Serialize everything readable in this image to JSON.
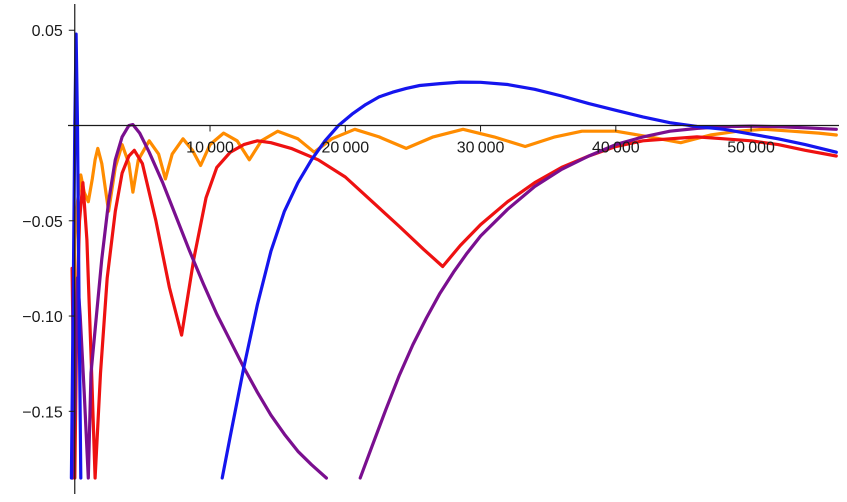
{
  "chart_data": {
    "type": "line",
    "title": "",
    "xlabel": "",
    "ylabel": "",
    "xlim": [
      -500,
      56500
    ],
    "ylim": [
      -0.185,
      0.058
    ],
    "x_ticks": [
      {
        "value": 10000,
        "label": "10 000"
      },
      {
        "value": 20000,
        "label": "20 000"
      },
      {
        "value": 30000,
        "label": "30 000"
      },
      {
        "value": 40000,
        "label": "40 000"
      },
      {
        "value": 50000,
        "label": "50 000"
      }
    ],
    "y_ticks": [
      {
        "value": 0.05,
        "label": "0.05"
      },
      {
        "value": -0.05,
        "label": "−0.05"
      },
      {
        "value": -0.1,
        "label": "−0.10"
      },
      {
        "value": -0.15,
        "label": "−0.15"
      }
    ],
    "grid": false,
    "legend": "none",
    "series": [
      {
        "color": "#ff8c00",
        "points": [
          [
            -150,
            -0.185
          ],
          [
            0,
            -0.06
          ],
          [
            200,
            -0.04
          ],
          [
            450,
            -0.026
          ],
          [
            700,
            -0.035
          ],
          [
            1000,
            -0.04
          ],
          [
            1300,
            -0.028
          ],
          [
            1500,
            -0.018
          ],
          [
            1700,
            -0.012
          ],
          [
            2000,
            -0.02
          ],
          [
            2500,
            -0.045
          ],
          [
            3000,
            -0.022
          ],
          [
            3500,
            -0.01
          ],
          [
            4000,
            -0.02
          ],
          [
            4300,
            -0.035
          ],
          [
            4700,
            -0.018
          ],
          [
            5500,
            -0.008
          ],
          [
            6200,
            -0.015
          ],
          [
            6700,
            -0.028
          ],
          [
            7200,
            -0.015
          ],
          [
            8000,
            -0.007
          ],
          [
            8700,
            -0.013
          ],
          [
            9300,
            -0.021
          ],
          [
            10000,
            -0.01
          ],
          [
            11000,
            -0.004
          ],
          [
            12000,
            -0.008
          ],
          [
            12900,
            -0.018
          ],
          [
            13800,
            -0.008
          ],
          [
            15000,
            -0.003
          ],
          [
            16500,
            -0.007
          ],
          [
            17700,
            -0.014
          ],
          [
            19000,
            -0.007
          ],
          [
            20700,
            -0.002
          ],
          [
            22500,
            -0.006
          ],
          [
            24500,
            -0.012
          ],
          [
            26500,
            -0.006
          ],
          [
            28700,
            -0.002
          ],
          [
            31000,
            -0.006
          ],
          [
            33300,
            -0.011
          ],
          [
            35500,
            -0.006
          ],
          [
            37500,
            -0.003
          ],
          [
            40000,
            -0.003
          ],
          [
            42500,
            -0.006
          ],
          [
            44800,
            -0.009
          ],
          [
            47000,
            -0.005
          ],
          [
            49000,
            -0.003
          ],
          [
            51000,
            -0.002
          ],
          [
            53000,
            -0.003
          ],
          [
            55000,
            -0.004
          ],
          [
            56300,
            -0.005
          ]
        ]
      },
      {
        "color": "#ee1111",
        "points": [
          [
            -200,
            -0.075
          ],
          [
            0,
            -0.185
          ],
          [
            150,
            -0.1
          ],
          [
            350,
            -0.05
          ],
          [
            600,
            -0.03
          ],
          [
            900,
            -0.06
          ],
          [
            1200,
            -0.12
          ],
          [
            1500,
            -0.185
          ],
          [
            1900,
            -0.13
          ],
          [
            2400,
            -0.08
          ],
          [
            3000,
            -0.045
          ],
          [
            3500,
            -0.025
          ],
          [
            4000,
            -0.016
          ],
          [
            4400,
            -0.013
          ],
          [
            5000,
            -0.02
          ],
          [
            6000,
            -0.05
          ],
          [
            7000,
            -0.085
          ],
          [
            7900,
            -0.11
          ],
          [
            8800,
            -0.07
          ],
          [
            9700,
            -0.038
          ],
          [
            10500,
            -0.022
          ],
          [
            11500,
            -0.014
          ],
          [
            12500,
            -0.01
          ],
          [
            13500,
            -0.008
          ],
          [
            14500,
            -0.009
          ],
          [
            16000,
            -0.012
          ],
          [
            18000,
            -0.018
          ],
          [
            20000,
            -0.027
          ],
          [
            22000,
            -0.04
          ],
          [
            24000,
            -0.053
          ],
          [
            25800,
            -0.065
          ],
          [
            27200,
            -0.074
          ],
          [
            28500,
            -0.063
          ],
          [
            30000,
            -0.052
          ],
          [
            32000,
            -0.04
          ],
          [
            34000,
            -0.03
          ],
          [
            36000,
            -0.022
          ],
          [
            38000,
            -0.016
          ],
          [
            40000,
            -0.011
          ],
          [
            42000,
            -0.008
          ],
          [
            44000,
            -0.007
          ],
          [
            46000,
            -0.006
          ],
          [
            48000,
            -0.007
          ],
          [
            50000,
            -0.008
          ],
          [
            52000,
            -0.01
          ],
          [
            54000,
            -0.013
          ],
          [
            56300,
            -0.016
          ]
        ]
      },
      {
        "color": "#7a0f8f",
        "points": [
          [
            -200,
            -0.185
          ],
          [
            0,
            -0.15
          ],
          [
            200,
            -0.08
          ],
          [
            400,
            -0.1
          ],
          [
            700,
            -0.14
          ],
          [
            1000,
            -0.185
          ],
          [
            1200,
            -0.13
          ],
          [
            1600,
            -0.1
          ],
          [
            2000,
            -0.07
          ],
          [
            2500,
            -0.04
          ],
          [
            3000,
            -0.018
          ],
          [
            3500,
            -0.006
          ],
          [
            4000,
            0.0
          ],
          [
            4300,
            0.0005
          ],
          [
            4800,
            -0.004
          ],
          [
            5500,
            -0.014
          ],
          [
            6500,
            -0.03
          ],
          [
            7500,
            -0.048
          ],
          [
            8500,
            -0.066
          ],
          [
            9500,
            -0.083
          ],
          [
            10500,
            -0.099
          ],
          [
            11500,
            -0.113
          ],
          [
            12500,
            -0.127
          ],
          [
            13500,
            -0.14
          ],
          [
            14500,
            -0.152
          ],
          [
            15500,
            -0.162
          ],
          [
            16500,
            -0.171
          ],
          [
            17500,
            -0.178
          ],
          [
            18600,
            -0.185
          ],
          null,
          [
            21100,
            -0.185
          ],
          [
            22000,
            -0.168
          ],
          [
            23000,
            -0.149
          ],
          [
            24000,
            -0.131
          ],
          [
            25000,
            -0.115
          ],
          [
            26000,
            -0.101
          ],
          [
            27000,
            -0.088
          ],
          [
            28000,
            -0.077
          ],
          [
            29000,
            -0.067
          ],
          [
            30000,
            -0.058
          ],
          [
            32000,
            -0.044
          ],
          [
            34000,
            -0.032
          ],
          [
            36000,
            -0.023
          ],
          [
            38000,
            -0.016
          ],
          [
            40000,
            -0.01
          ],
          [
            42000,
            -0.006
          ],
          [
            44000,
            -0.003
          ],
          [
            46000,
            -0.0015
          ],
          [
            48000,
            -0.0006
          ],
          [
            50000,
            -0.0003
          ],
          [
            52000,
            -0.0006
          ],
          [
            54000,
            -0.0012
          ],
          [
            56300,
            -0.002
          ]
        ]
      },
      {
        "color": "#1515ee",
        "points": [
          [
            -250,
            -0.185
          ],
          [
            -100,
            -0.08
          ],
          [
            0,
            0.0
          ],
          [
            100,
            0.048
          ],
          [
            200,
            0.0
          ],
          [
            300,
            -0.08
          ],
          [
            450,
            -0.185
          ],
          null,
          [
            10900,
            -0.185
          ],
          [
            11500,
            -0.163
          ],
          [
            12500,
            -0.127
          ],
          [
            13500,
            -0.094
          ],
          [
            14500,
            -0.066
          ],
          [
            15500,
            -0.045
          ],
          [
            16500,
            -0.03
          ],
          [
            17500,
            -0.018
          ],
          [
            18500,
            -0.008
          ],
          [
            19500,
            0.0
          ],
          [
            20500,
            0.006
          ],
          [
            21500,
            0.011
          ],
          [
            22500,
            0.015
          ],
          [
            23500,
            0.0175
          ],
          [
            24500,
            0.0195
          ],
          [
            25500,
            0.021
          ],
          [
            27000,
            0.022
          ],
          [
            28500,
            0.0228
          ],
          [
            30000,
            0.0227
          ],
          [
            32000,
            0.0215
          ],
          [
            34000,
            0.019
          ],
          [
            36000,
            0.0155
          ],
          [
            38000,
            0.0115
          ],
          [
            40000,
            0.008
          ],
          [
            42000,
            0.0045
          ],
          [
            44000,
            0.0015
          ],
          [
            46000,
            -0.0005
          ],
          [
            48000,
            -0.002
          ],
          [
            50000,
            -0.0045
          ],
          [
            52000,
            -0.007
          ],
          [
            54000,
            -0.01
          ],
          [
            56300,
            -0.014
          ]
        ]
      }
    ]
  }
}
